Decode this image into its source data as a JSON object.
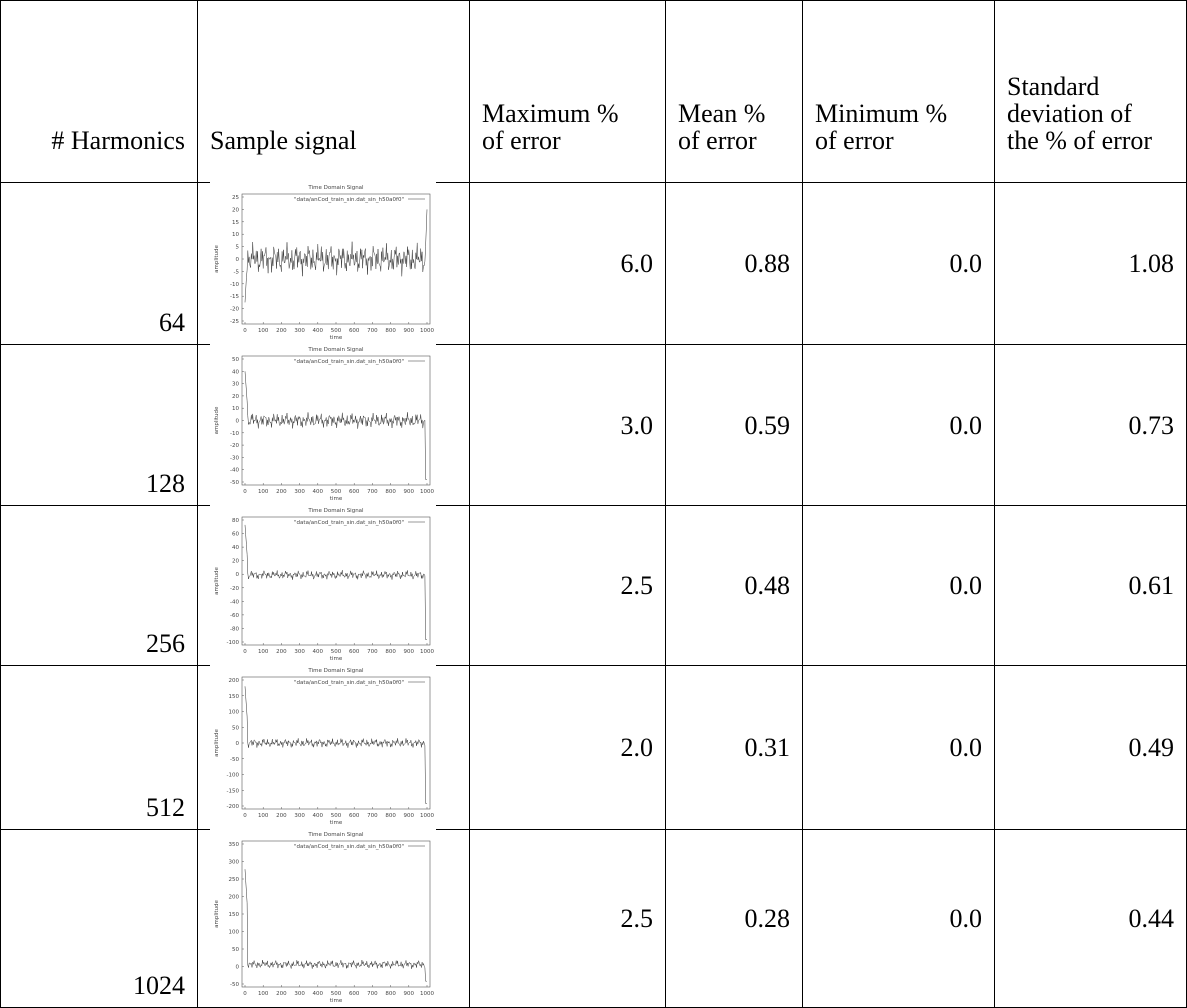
{
  "table": {
    "header": [
      "# Harmonics",
      "Sample signal",
      "Maximum % of error",
      "Mean % of error",
      "Minimum % of error",
      "Standard deviation of the % of error"
    ],
    "rows": [
      {
        "harmonics": "64",
        "max": "6.0",
        "mean": "0.88",
        "min": "0.0",
        "std": "1.08",
        "plot": {
          "title": "Time Domain Signal",
          "legend": "\"data/anCod_train_sin.dat_sin_h50a0f0\"",
          "ylabel": "amplitude",
          "xlabel": "time",
          "yticks": [
            "25",
            "20",
            "15",
            "10",
            "5",
            "0",
            "-5",
            "-10",
            "-15",
            "-20",
            "-25"
          ],
          "xticks": [
            "0",
            "100",
            "200",
            "300",
            "400",
            "500",
            "600",
            "700",
            "800",
            "900",
            "1000"
          ]
        }
      },
      {
        "harmonics": "128",
        "max": "3.0",
        "mean": "0.59",
        "min": "0.0",
        "std": "0.73",
        "plot": {
          "title": "Time Domain Signal",
          "legend": "\"data/anCod_train_sin.dat_sin_h50a0f0\"",
          "ylabel": "amplitude",
          "xlabel": "time",
          "yticks": [
            "50",
            "40",
            "30",
            "20",
            "10",
            "0",
            "-10",
            "-20",
            "-30",
            "-40",
            "-50"
          ],
          "xticks": [
            "0",
            "100",
            "200",
            "300",
            "400",
            "500",
            "600",
            "700",
            "800",
            "900",
            "1000"
          ]
        }
      },
      {
        "harmonics": "256",
        "max": "2.5",
        "mean": "0.48",
        "min": "0.0",
        "std": "0.61",
        "plot": {
          "title": "Time Domain Signal",
          "legend": "\"data/anCod_train_sin.dat_sin_h50a0f0\"",
          "ylabel": "amplitude",
          "xlabel": "time",
          "yticks": [
            "80",
            "60",
            "40",
            "20",
            "0",
            "-20",
            "-40",
            "-60",
            "-80",
            "-100"
          ],
          "xticks": [
            "0",
            "100",
            "200",
            "300",
            "400",
            "500",
            "600",
            "700",
            "800",
            "900",
            "1000"
          ]
        }
      },
      {
        "harmonics": "512",
        "max": "2.0",
        "mean": "0.31",
        "min": "0.0",
        "std": "0.49",
        "plot": {
          "title": "Time Domain Signal",
          "legend": "\"data/anCod_train_sin.dat_sin_h50a0f0\"",
          "ylabel": "amplitude",
          "xlabel": "time",
          "yticks": [
            "200",
            "150",
            "100",
            "50",
            "0",
            "-50",
            "-100",
            "-150",
            "-200"
          ],
          "xticks": [
            "0",
            "100",
            "200",
            "300",
            "400",
            "500",
            "600",
            "700",
            "800",
            "900",
            "1000"
          ]
        }
      },
      {
        "harmonics": "1024",
        "max": "2.5",
        "mean": "0.28",
        "min": "0.0",
        "std": "0.44",
        "plot": {
          "title": "Time Domain Signal",
          "legend": "\"data/anCod_train_sin.dat_sin_h50a0f0\"",
          "ylabel": "amplitude",
          "xlabel": "time",
          "yticks": [
            "350",
            "300",
            "250",
            "200",
            "150",
            "100",
            "50",
            "0",
            "-50"
          ],
          "xticks": [
            "0",
            "100",
            "200",
            "300",
            "400",
            "500",
            "600",
            "700",
            "800",
            "900",
            "1000"
          ]
        }
      }
    ]
  }
}
